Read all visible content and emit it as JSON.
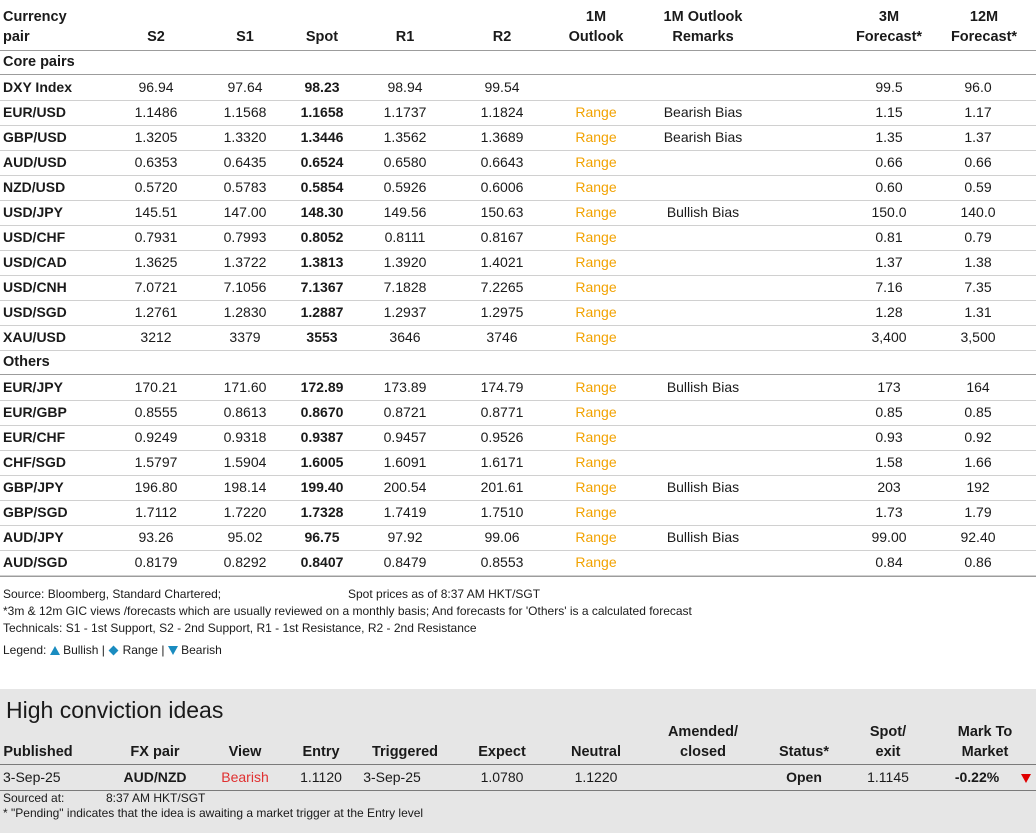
{
  "headers": {
    "pair": [
      "Currency",
      "pair"
    ],
    "s2": "S2",
    "s1": "S1",
    "spot": "Spot",
    "r1": "R1",
    "r2": "R2",
    "outlook": [
      "1M",
      "Outlook"
    ],
    "remarks": [
      "1M Outlook",
      "Remarks"
    ],
    "f3m": [
      "3M",
      "Forecast*"
    ],
    "f12m": [
      "12M",
      "Forecast*"
    ]
  },
  "sections": [
    {
      "title": "Core pairs",
      "rows": [
        {
          "pair": "DXY Index",
          "s2": "96.94",
          "s1": "97.64",
          "spot": "98.23",
          "r1": "98.94",
          "r2": "99.54",
          "outlook": "",
          "remark": "",
          "f3": "99.5",
          "f12": "96.0"
        },
        {
          "pair": "EUR/USD",
          "s2": "1.1486",
          "s1": "1.1568",
          "spot": "1.1658",
          "r1": "1.1737",
          "r2": "1.1824",
          "outlook": "Range",
          "remark": "Bearish Bias",
          "f3": "1.15",
          "f12": "1.17"
        },
        {
          "pair": "GBP/USD",
          "s2": "1.3205",
          "s1": "1.3320",
          "spot": "1.3446",
          "r1": "1.3562",
          "r2": "1.3689",
          "outlook": "Range",
          "remark": "Bearish Bias",
          "f3": "1.35",
          "f12": "1.37"
        },
        {
          "pair": "AUD/USD",
          "s2": "0.6353",
          "s1": "0.6435",
          "spot": "0.6524",
          "r1": "0.6580",
          "r2": "0.6643",
          "outlook": "Range",
          "remark": "",
          "f3": "0.66",
          "f12": "0.66"
        },
        {
          "pair": "NZD/USD",
          "s2": "0.5720",
          "s1": "0.5783",
          "spot": "0.5854",
          "r1": "0.5926",
          "r2": "0.6006",
          "outlook": "Range",
          "remark": "",
          "f3": "0.60",
          "f12": "0.59"
        },
        {
          "pair": "USD/JPY",
          "s2": "145.51",
          "s1": "147.00",
          "spot": "148.30",
          "r1": "149.56",
          "r2": "150.63",
          "outlook": "Range",
          "remark": "Bullish Bias",
          "f3": "150.0",
          "f12": "140.0"
        },
        {
          "pair": "USD/CHF",
          "s2": "0.7931",
          "s1": "0.7993",
          "spot": "0.8052",
          "r1": "0.8111",
          "r2": "0.8167",
          "outlook": "Range",
          "remark": "",
          "f3": "0.81",
          "f12": "0.79"
        },
        {
          "pair": "USD/CAD",
          "s2": "1.3625",
          "s1": "1.3722",
          "spot": "1.3813",
          "r1": "1.3920",
          "r2": "1.4021",
          "outlook": "Range",
          "remark": "",
          "f3": "1.37",
          "f12": "1.38"
        },
        {
          "pair": "USD/CNH",
          "s2": "7.0721",
          "s1": "7.1056",
          "spot": "7.1367",
          "r1": "7.1828",
          "r2": "7.2265",
          "outlook": "Range",
          "remark": "",
          "f3": "7.16",
          "f12": "7.35"
        },
        {
          "pair": "USD/SGD",
          "s2": "1.2761",
          "s1": "1.2830",
          "spot": "1.2887",
          "r1": "1.2937",
          "r2": "1.2975",
          "outlook": "Range",
          "remark": "",
          "f3": "1.28",
          "f12": "1.31"
        },
        {
          "pair": "XAU/USD",
          "s2": "3212",
          "s1": "3379",
          "spot": "3553",
          "r1": "3646",
          "r2": "3746",
          "outlook": "Range",
          "remark": "",
          "f3": "3,400",
          "f12": "3,500"
        }
      ]
    },
    {
      "title": "Others",
      "rows": [
        {
          "pair": "EUR/JPY",
          "s2": "170.21",
          "s1": "171.60",
          "spot": "172.89",
          "r1": "173.89",
          "r2": "174.79",
          "outlook": "Range",
          "remark": "Bullish Bias",
          "f3": "173",
          "f12": "164"
        },
        {
          "pair": "EUR/GBP",
          "s2": "0.8555",
          "s1": "0.8613",
          "spot": "0.8670",
          "r1": "0.8721",
          "r2": "0.8771",
          "outlook": "Range",
          "remark": "",
          "f3": "0.85",
          "f12": "0.85"
        },
        {
          "pair": "EUR/CHF",
          "s2": "0.9249",
          "s1": "0.9318",
          "spot": "0.9387",
          "r1": "0.9457",
          "r2": "0.9526",
          "outlook": "Range",
          "remark": "",
          "f3": "0.93",
          "f12": "0.92"
        },
        {
          "pair": "CHF/SGD",
          "s2": "1.5797",
          "s1": "1.5904",
          "spot": "1.6005",
          "r1": "1.6091",
          "r2": "1.6171",
          "outlook": "Range",
          "remark": "",
          "f3": "1.58",
          "f12": "1.66"
        },
        {
          "pair": "GBP/JPY",
          "s2": "196.80",
          "s1": "198.14",
          "spot": "199.40",
          "r1": "200.54",
          "r2": "201.61",
          "outlook": "Range",
          "remark": "Bullish Bias",
          "f3": "203",
          "f12": "192"
        },
        {
          "pair": "GBP/SGD",
          "s2": "1.7112",
          "s1": "1.7220",
          "spot": "1.7328",
          "r1": "1.7419",
          "r2": "1.7510",
          "outlook": "Range",
          "remark": "",
          "f3": "1.73",
          "f12": "1.79"
        },
        {
          "pair": "AUD/JPY",
          "s2": "93.26",
          "s1": "95.02",
          "spot": "96.75",
          "r1": "97.92",
          "r2": "99.06",
          "outlook": "Range",
          "remark": "Bullish Bias",
          "f3": "99.00",
          "f12": "92.40"
        },
        {
          "pair": "AUD/SGD",
          "s2": "0.8179",
          "s1": "0.8292",
          "spot": "0.8407",
          "r1": "0.8479",
          "r2": "0.8553",
          "outlook": "Range",
          "remark": "",
          "f3": "0.84",
          "f12": "0.86"
        }
      ]
    }
  ],
  "notes": {
    "source": "Source: Bloomberg, Standard Chartered;",
    "spot_time": "Spot prices as of 8:37 AM HKT/SGT",
    "forecast_note": "*3m & 12m GIC views /forecasts which are usually reviewed on a monthly basis; And forecasts for 'Others' is a calculated forecast",
    "technicals": "Technicals: S1 - 1st Support, S2 - 2nd Support, R1 - 1st Resistance, R2 - 2nd Resistance",
    "legend_label": "Legend:",
    "legend_bullish": "Bullish",
    "legend_range": "Range",
    "legend_bearish": "Bearish",
    "legend_sep": "|"
  },
  "hci": {
    "title": "High conviction ideas",
    "headers": {
      "published": "Published",
      "fx_pair": "FX pair",
      "view": "View",
      "entry": "Entry",
      "triggered": "Triggered",
      "expect": "Expect",
      "neutral": "Neutral",
      "amended": [
        "Amended/",
        "closed"
      ],
      "status": "Status*",
      "spot_exit": [
        "Spot/",
        "exit"
      ],
      "mtm": [
        "Mark To",
        "Market"
      ]
    },
    "row": {
      "published": "3-Sep-25",
      "fx_pair": "AUD/NZD",
      "view": "Bearish",
      "entry": "1.1120",
      "triggered": "3-Sep-25",
      "expect": "1.0780",
      "neutral": "1.1220",
      "amended": "",
      "status": "Open",
      "spot_exit": "1.1145",
      "mtm": "-0.22%"
    },
    "sourced_label": "Sourced at:",
    "sourced_time": "8:37 AM HKT/SGT",
    "pending_note": "* \"Pending\" indicates that the idea is awaiting a market trigger at the Entry level"
  },
  "colors": {
    "outlook_range": "#f2a200",
    "bearish_view": "#e03030",
    "legend_icon": "#1a8cc0",
    "mtm_down": "#e00000",
    "panel_bg": "#e6e6e6"
  }
}
